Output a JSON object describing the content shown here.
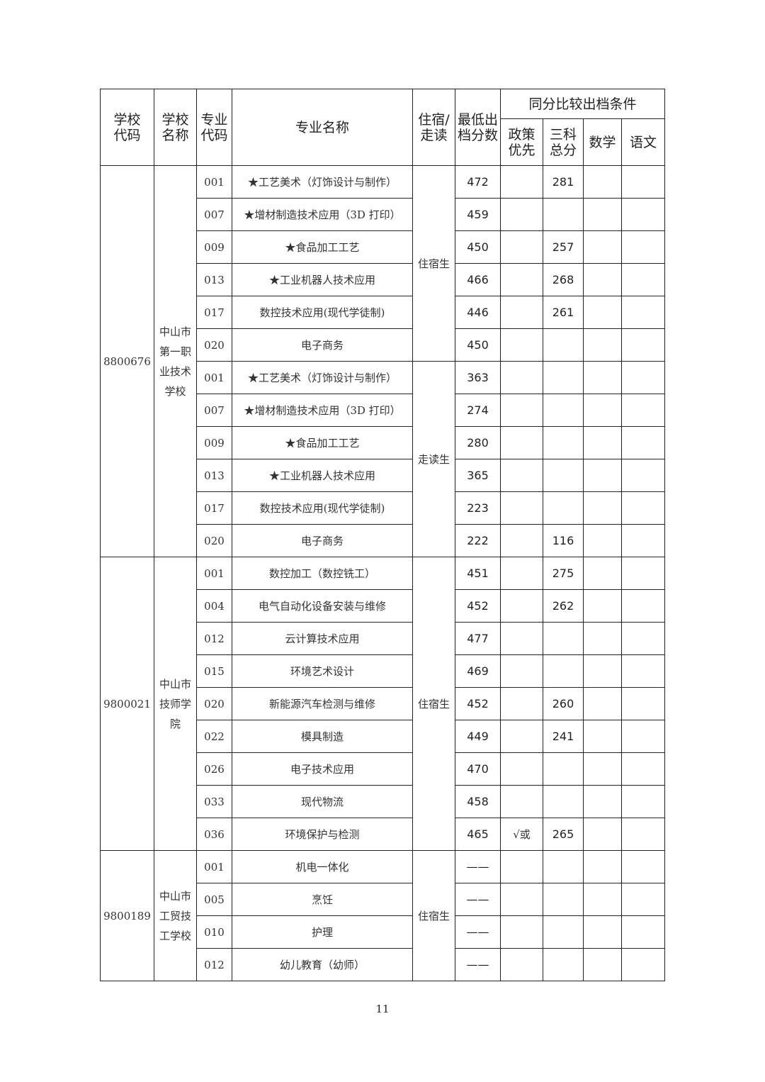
{
  "header": {
    "school_code": "学校\n代码",
    "school_name": "学校\n名称",
    "major_code": "专业\n代码",
    "major_name": "专业名称",
    "lodging": "住宿/\n走读",
    "min_score": "最低出\n档分数",
    "tie_break": "同分比较出档条件",
    "policy": "政策\n优先",
    "total3": "三科\n总分",
    "math": "数学",
    "chinese": "语文"
  },
  "schools": [
    {
      "code": "8800676",
      "name": "中山市\n第一职\n业技术\n学校",
      "groups": [
        {
          "mode": "住宿生",
          "rows": [
            {
              "code": "001",
              "name": "★工艺美术（灯饰设计与制作）",
              "min": "472",
              "policy": "",
              "total": "281"
            },
            {
              "code": "007",
              "name": "★增材制造技术应用（3D 打印）",
              "min": "459",
              "policy": "",
              "total": ""
            },
            {
              "code": "009",
              "name": "★食品加工工艺",
              "min": "450",
              "policy": "",
              "total": "257"
            },
            {
              "code": "013",
              "name": "★工业机器人技术应用",
              "min": "466",
              "policy": "",
              "total": "268"
            },
            {
              "code": "017",
              "name": "数控技术应用(现代学徒制)",
              "min": "446",
              "policy": "",
              "total": "261"
            },
            {
              "code": "020",
              "name": "电子商务",
              "min": "450",
              "policy": "",
              "total": ""
            }
          ]
        },
        {
          "mode": "走读生",
          "rows": [
            {
              "code": "001",
              "name": "★工艺美术（灯饰设计与制作）",
              "min": "363",
              "policy": "",
              "total": ""
            },
            {
              "code": "007",
              "name": "★增材制造技术应用（3D 打印）",
              "min": "274",
              "policy": "",
              "total": ""
            },
            {
              "code": "009",
              "name": "★食品加工工艺",
              "min": "280",
              "policy": "",
              "total": ""
            },
            {
              "code": "013",
              "name": "★工业机器人技术应用",
              "min": "365",
              "policy": "",
              "total": ""
            },
            {
              "code": "017",
              "name": "数控技术应用(现代学徒制)",
              "min": "223",
              "policy": "",
              "total": ""
            },
            {
              "code": "020",
              "name": "电子商务",
              "min": "222",
              "policy": "",
              "total": "116"
            }
          ]
        }
      ]
    },
    {
      "code": "9800021",
      "name": "中山市\n技师学\n院",
      "groups": [
        {
          "mode": "住宿生",
          "rows": [
            {
              "code": "001",
              "name": "数控加工（数控铣工）",
              "min": "451",
              "policy": "",
              "total": "275"
            },
            {
              "code": "004",
              "name": "电气自动化设备安装与维修",
              "min": "452",
              "policy": "",
              "total": "262"
            },
            {
              "code": "012",
              "name": "云计算技术应用",
              "min": "477",
              "policy": "",
              "total": ""
            },
            {
              "code": "015",
              "name": "环境艺术设计",
              "min": "469",
              "policy": "",
              "total": ""
            },
            {
              "code": "020",
              "name": "新能源汽车检测与维修",
              "min": "452",
              "policy": "",
              "total": "260"
            },
            {
              "code": "022",
              "name": "模具制造",
              "min": "449",
              "policy": "",
              "total": "241"
            },
            {
              "code": "026",
              "name": "电子技术应用",
              "min": "470",
              "policy": "",
              "total": ""
            },
            {
              "code": "033",
              "name": "现代物流",
              "min": "458",
              "policy": "",
              "total": ""
            },
            {
              "code": "036",
              "name": "环境保护与检测",
              "min": "465",
              "policy": "√或",
              "total": "265"
            }
          ]
        }
      ]
    },
    {
      "code": "9800189",
      "name": "中山市\n工贸技\n工学校",
      "groups": [
        {
          "mode": "住宿生",
          "rows": [
            {
              "code": "001",
              "name": "机电一体化",
              "min": "——",
              "policy": "",
              "total": ""
            },
            {
              "code": "005",
              "name": "烹饪",
              "min": "——",
              "policy": "",
              "total": ""
            },
            {
              "code": "010",
              "name": "护理",
              "min": "——",
              "policy": "",
              "total": ""
            },
            {
              "code": "012",
              "name": "幼儿教育（幼师）",
              "min": "——",
              "policy": "",
              "total": ""
            }
          ]
        }
      ]
    }
  ],
  "page_number": "11"
}
